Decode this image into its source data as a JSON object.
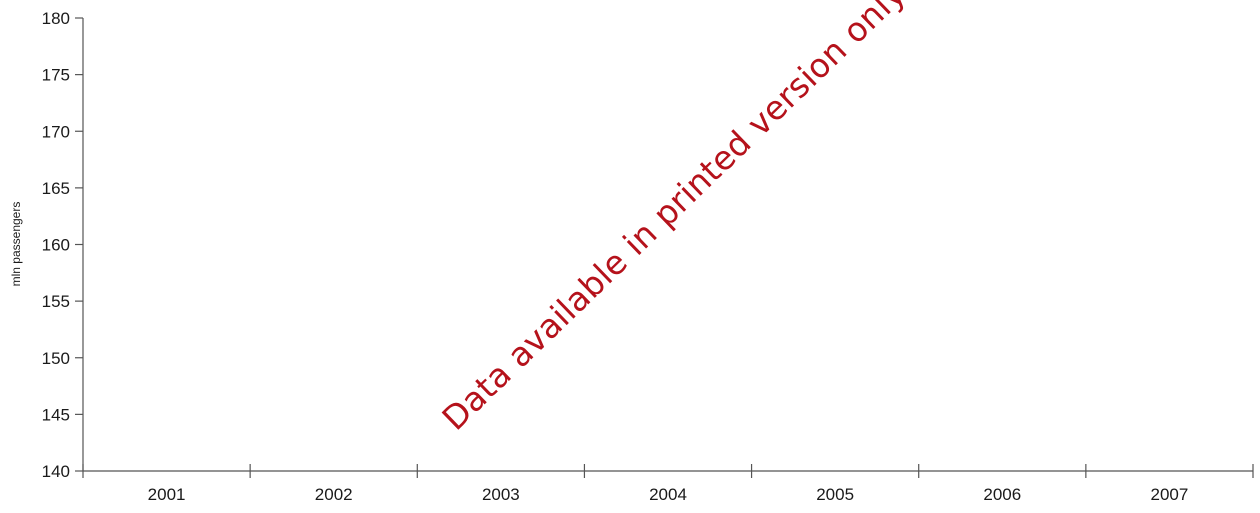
{
  "chart_data": {
    "type": "line",
    "title": "",
    "xlabel": "",
    "ylabel": "mln passengers",
    "categories": [
      "2001",
      "2002",
      "2003",
      "2004",
      "2005",
      "2006",
      "2007"
    ],
    "series": [],
    "ylim": [
      140,
      180
    ],
    "yticks": [
      140,
      145,
      150,
      155,
      160,
      165,
      170,
      175,
      180
    ],
    "grid": false,
    "legend": "none"
  },
  "watermark": {
    "text": "Data available in printed version only",
    "color": "#b5121b"
  },
  "colors": {
    "axis": "#555555",
    "text": "#1a1a1a"
  }
}
